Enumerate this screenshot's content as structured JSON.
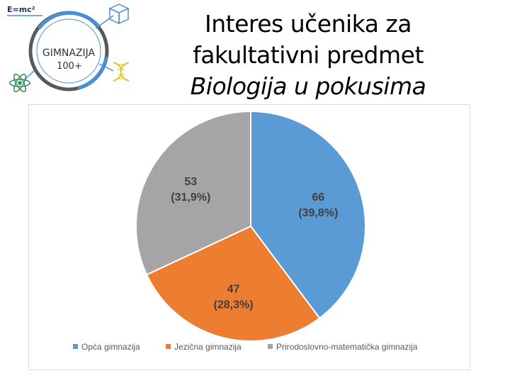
{
  "logo": {
    "formula": "E=mc²",
    "name_line1": "GIMNAZIJA",
    "name_line2": "100+",
    "colors": {
      "ring": "#5a5a5a",
      "blue": "#4a90d9",
      "dna": "#e8c22a",
      "atom": "#2e8b57"
    }
  },
  "title": {
    "line1": "Interes učenika za",
    "line2": "fakultativni predmet",
    "line3": "Biologija u pokusima"
  },
  "chart_data": {
    "type": "pie",
    "title": "",
    "start_angle_deg": 0,
    "direction": "clockwise",
    "legend_position": "bottom",
    "categories": [
      "Opća gimnazija",
      "Jezična gimnazija",
      "Prirodoslovno-matematička gimnazija"
    ],
    "values": [
      66,
      47,
      53
    ],
    "labels": [
      {
        "value": "66",
        "percent": "(39,8%)"
      },
      {
        "value": "47",
        "percent": "(28,3%)"
      },
      {
        "value": "53",
        "percent": "(31,9%)"
      }
    ],
    "colors": [
      "#5b9bd5",
      "#ed7d31",
      "#a5a5a5"
    ]
  }
}
